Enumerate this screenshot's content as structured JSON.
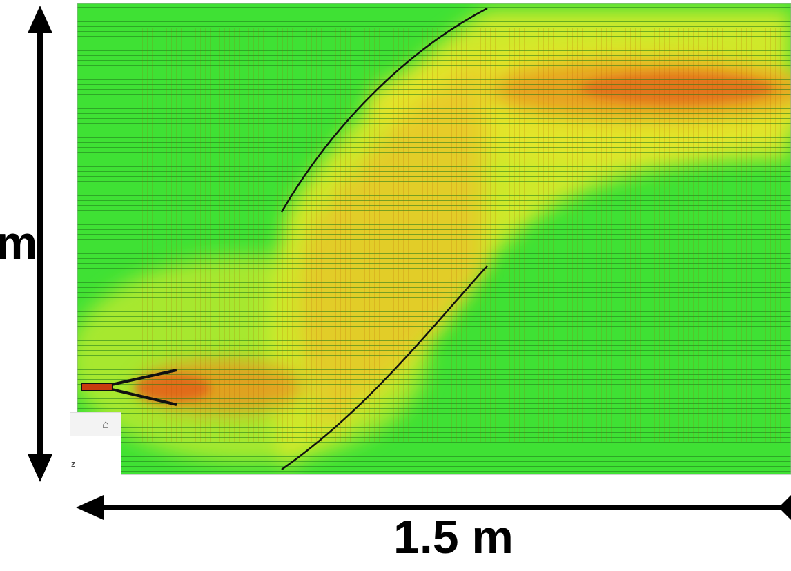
{
  "dimensions": {
    "width_label": "1.5 m",
    "height_label": "m"
  },
  "axis_widget": {
    "icon": "cube-view-icon",
    "icon_glyph": "⌂",
    "axis_letter": "z"
  },
  "colors": {
    "field_low": "#34e02e",
    "field_mid": "#d7ec2c",
    "field_high": "#e56a12",
    "contour": "#1f7a1c",
    "structure": "#111111",
    "arrow": "#000000"
  }
}
